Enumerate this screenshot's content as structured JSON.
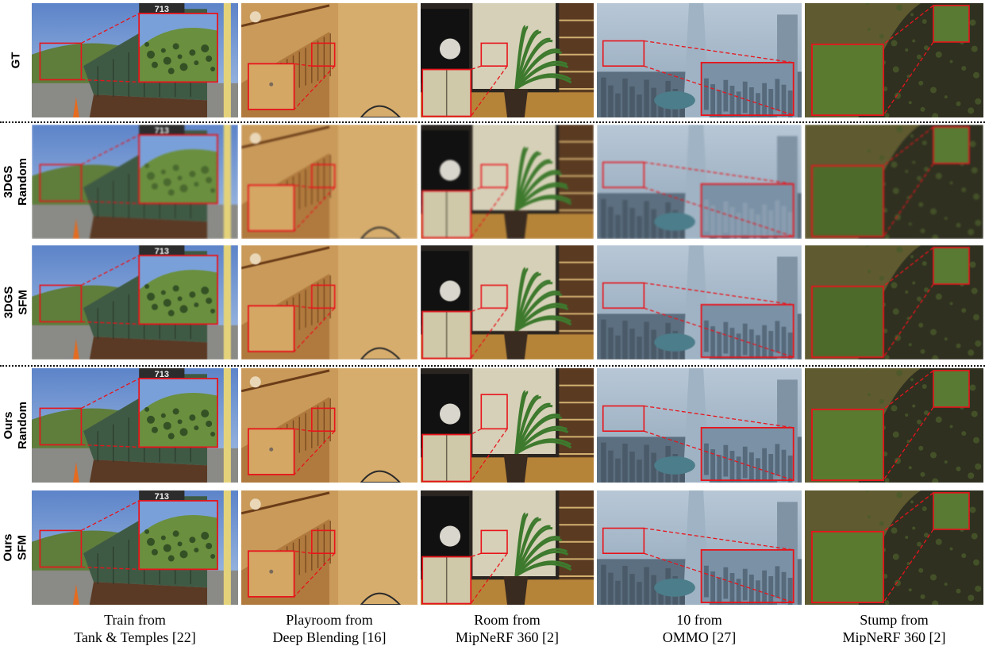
{
  "figure": {
    "rows": [
      {
        "id": "gt",
        "label_lines": [
          "GT"
        ]
      },
      {
        "id": "3dgs-random",
        "label_lines": [
          "3DGS",
          "Random"
        ]
      },
      {
        "id": "3dgs-sfm",
        "label_lines": [
          "3DGS",
          "SFM"
        ]
      },
      {
        "id": "ours-random",
        "label_lines": [
          "Ours",
          "Random"
        ]
      },
      {
        "id": "ours-sfm",
        "label_lines": [
          "Ours",
          "SFM"
        ]
      }
    ],
    "columns": [
      {
        "id": "train",
        "caption_lines": [
          "Train from",
          "Tank & Temples [22]"
        ],
        "scene": "train"
      },
      {
        "id": "playroom",
        "caption_lines": [
          "Playroom from",
          "Deep Blending [16]"
        ],
        "scene": "playroom"
      },
      {
        "id": "room",
        "caption_lines": [
          "Room from",
          "MipNeRF 360 [2]"
        ],
        "scene": "room"
      },
      {
        "id": "ommo",
        "caption_lines": [
          "10 from",
          "OMMO [27]"
        ],
        "scene": "city"
      },
      {
        "id": "stump",
        "caption_lines": [
          "Stump from",
          "MipNeRF 360 [2]"
        ],
        "scene": "stump"
      }
    ],
    "overlays": {
      "train_number": "713"
    },
    "colors": {
      "highlight": "#e8141b",
      "divider": "#111111"
    }
  }
}
